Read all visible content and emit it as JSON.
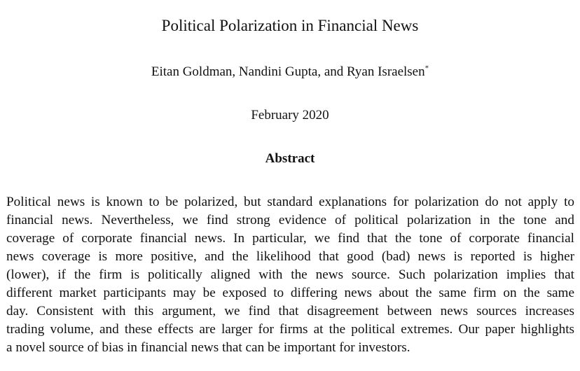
{
  "paper": {
    "title": "Political Polarization in Financial News",
    "authors": "Eitan Goldman, Nandini Gupta, and Ryan Israelsen",
    "author_footnote_mark": "*",
    "date": "February 2020",
    "abstract_heading": "Abstract",
    "abstract_lines": [
      "Political news is known to be polarized, but standard explanations for polarization do not apply to",
      "financial news. Nevertheless, we find strong evidence of political polarization in the tone and",
      "coverage of corporate financial news. In particular, we find that the tone of corporate financial",
      "news coverage is more positive, and the likelihood that good (bad) news is reported is higher",
      "(lower), if the firm is politically aligned with the news source. Such polarization implies that",
      "different market participants may be exposed to differing news about the same firm on the same",
      "day. Consistent with this argument, we find that disagreement between news sources increases",
      "trading volume, and these effects are larger for firms at the political extremes. Our paper highlights",
      "a novel source of bias in financial news that can be important for investors."
    ]
  }
}
